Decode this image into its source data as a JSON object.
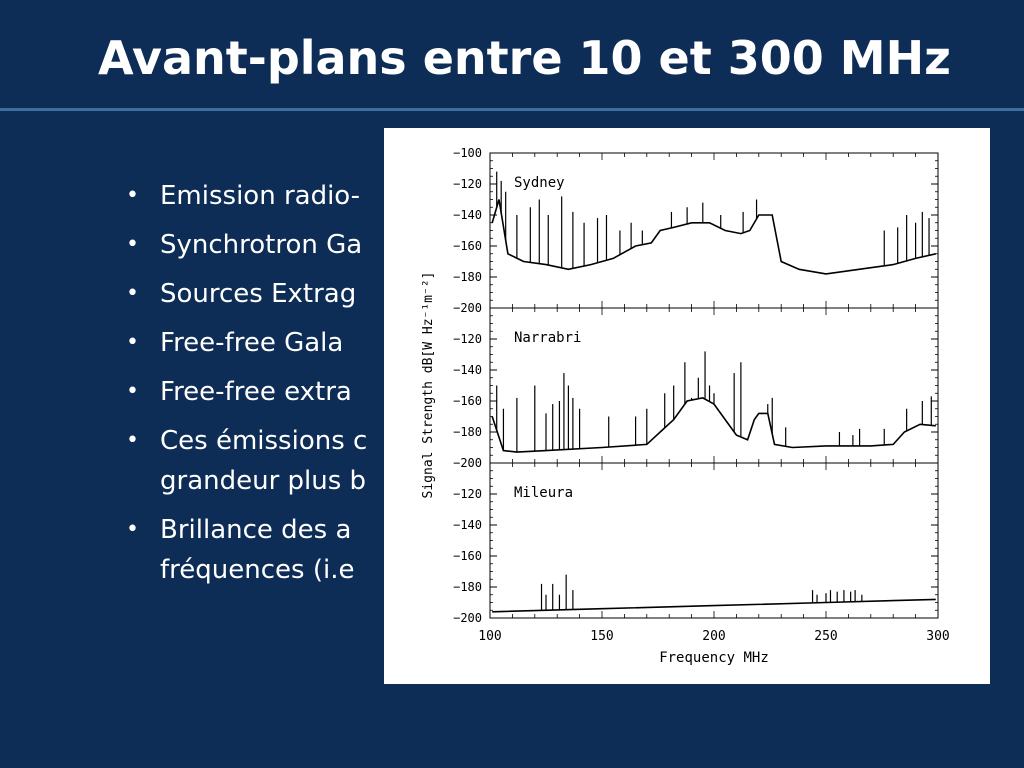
{
  "slide": {
    "title": "Avant-plans entre 10 et 300 MHz",
    "bullets": [
      {
        "lines": [
          "Emission radio-"
        ]
      },
      {
        "lines": [
          "Synchrotron Ga"
        ]
      },
      {
        "lines": [
          "Sources Extrag"
        ]
      },
      {
        "lines": [
          "Free-free Gala"
        ]
      },
      {
        "lines": [
          "Free-free extra"
        ]
      },
      {
        "lines": [
          "Ces émissions c",
          "grandeur plus b"
        ]
      },
      {
        "lines": [
          "Brillance des a",
          "fréquences (i.e"
        ]
      }
    ]
  },
  "colors": {
    "background": "#0d2d56",
    "rule": "#3f6d9d",
    "text": "#ffffff",
    "figure_bg": "#ffffff",
    "ink": "#000000"
  },
  "chart_data": {
    "type": "line",
    "xlabel": "Frequency  MHz",
    "ylabel": "Signal Strength dB[W Hz⁻¹m⁻²]",
    "xlim": [
      100,
      300
    ],
    "x_ticks": [
      100,
      150,
      200,
      250,
      300
    ],
    "grid": false,
    "panels": [
      {
        "label": "Sydney",
        "ylim": [
          -200,
          -100
        ],
        "y_ticks": [
          -100,
          -120,
          -140,
          -160,
          -180,
          -200
        ],
        "baseline": [
          [
            101,
            -145
          ],
          [
            104,
            -130
          ],
          [
            108,
            -165
          ],
          [
            115,
            -170
          ],
          [
            125,
            -172
          ],
          [
            135,
            -175
          ],
          [
            145,
            -172
          ],
          [
            155,
            -168
          ],
          [
            165,
            -160
          ],
          [
            172,
            -158
          ],
          [
            176,
            -150
          ],
          [
            182,
            -148
          ],
          [
            190,
            -145
          ],
          [
            198,
            -145
          ],
          [
            205,
            -150
          ],
          [
            212,
            -152
          ],
          [
            216,
            -150
          ],
          [
            220,
            -140
          ],
          [
            226,
            -140
          ],
          [
            230,
            -170
          ],
          [
            238,
            -175
          ],
          [
            250,
            -178
          ],
          [
            260,
            -176
          ],
          [
            270,
            -174
          ],
          [
            280,
            -172
          ],
          [
            290,
            -168
          ],
          [
            299,
            -165
          ]
        ],
        "spikes": [
          [
            103,
            -112
          ],
          [
            105,
            -118
          ],
          [
            107,
            -125
          ],
          [
            112,
            -140
          ],
          [
            118,
            -135
          ],
          [
            122,
            -130
          ],
          [
            126,
            -140
          ],
          [
            132,
            -128
          ],
          [
            137,
            -138
          ],
          [
            142,
            -145
          ],
          [
            148,
            -142
          ],
          [
            152,
            -140
          ],
          [
            158,
            -150
          ],
          [
            163,
            -145
          ],
          [
            168,
            -150
          ],
          [
            181,
            -138
          ],
          [
            188,
            -135
          ],
          [
            195,
            -132
          ],
          [
            203,
            -140
          ],
          [
            213,
            -138
          ],
          [
            219,
            -130
          ],
          [
            276,
            -150
          ],
          [
            282,
            -148
          ],
          [
            286,
            -140
          ],
          [
            290,
            -145
          ],
          [
            293,
            -138
          ],
          [
            296,
            -142
          ]
        ]
      },
      {
        "label": "Narrabri",
        "ylim": [
          -200,
          -100
        ],
        "y_ticks": [
          -120,
          -140,
          -160,
          -180,
          -200
        ],
        "baseline": [
          [
            101,
            -170
          ],
          [
            106,
            -192
          ],
          [
            112,
            -193
          ],
          [
            125,
            -192
          ],
          [
            150,
            -190
          ],
          [
            170,
            -188
          ],
          [
            176,
            -180
          ],
          [
            182,
            -172
          ],
          [
            188,
            -160
          ],
          [
            195,
            -158
          ],
          [
            200,
            -162
          ],
          [
            205,
            -172
          ],
          [
            210,
            -182
          ],
          [
            215,
            -185
          ],
          [
            218,
            -172
          ],
          [
            220,
            -168
          ],
          [
            224,
            -168
          ],
          [
            227,
            -188
          ],
          [
            235,
            -190
          ],
          [
            250,
            -189
          ],
          [
            270,
            -189
          ],
          [
            280,
            -188
          ],
          [
            285,
            -180
          ],
          [
            292,
            -175
          ],
          [
            299,
            -176
          ]
        ],
        "spikes": [
          [
            103,
            -150
          ],
          [
            106,
            -165
          ],
          [
            112,
            -158
          ],
          [
            120,
            -150
          ],
          [
            125,
            -168
          ],
          [
            128,
            -162
          ],
          [
            131,
            -160
          ],
          [
            133,
            -142
          ],
          [
            135,
            -150
          ],
          [
            137,
            -158
          ],
          [
            140,
            -165
          ],
          [
            153,
            -170
          ],
          [
            165,
            -170
          ],
          [
            170,
            -165
          ],
          [
            178,
            -155
          ],
          [
            182,
            -150
          ],
          [
            187,
            -135
          ],
          [
            190,
            -158
          ],
          [
            193,
            -145
          ],
          [
            196,
            -128
          ],
          [
            198,
            -150
          ],
          [
            200,
            -155
          ],
          [
            209,
            -142
          ],
          [
            212,
            -135
          ],
          [
            224,
            -162
          ],
          [
            226,
            -158
          ],
          [
            232,
            -177
          ],
          [
            256,
            -180
          ],
          [
            262,
            -182
          ],
          [
            265,
            -178
          ],
          [
            276,
            -178
          ],
          [
            286,
            -165
          ],
          [
            293,
            -160
          ],
          [
            297,
            -157
          ]
        ]
      },
      {
        "label": "Mileura",
        "ylim": [
          -200,
          -100
        ],
        "y_ticks": [
          -120,
          -140,
          -160,
          -180,
          -200
        ],
        "baseline": [
          [
            101,
            -196
          ],
          [
            150,
            -194
          ],
          [
            200,
            -192
          ],
          [
            250,
            -190
          ],
          [
            299,
            -188
          ]
        ],
        "spikes": [
          [
            123,
            -178
          ],
          [
            125,
            -185
          ],
          [
            128,
            -178
          ],
          [
            131,
            -185
          ],
          [
            134,
            -172
          ],
          [
            137,
            -182
          ],
          [
            244,
            -182
          ],
          [
            246,
            -185
          ],
          [
            250,
            -184
          ],
          [
            252,
            -182
          ],
          [
            255,
            -183
          ],
          [
            258,
            -182
          ],
          [
            261,
            -183
          ],
          [
            263,
            -182
          ],
          [
            266,
            -185
          ]
        ]
      }
    ]
  }
}
